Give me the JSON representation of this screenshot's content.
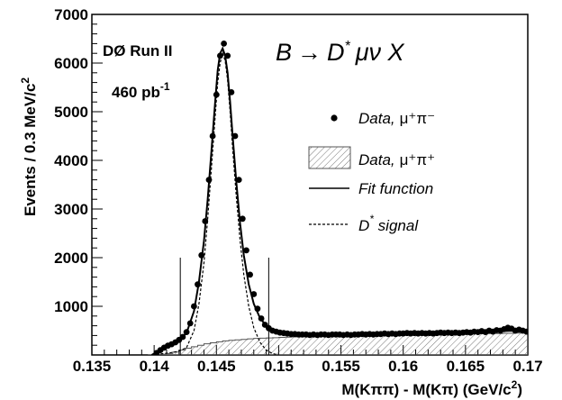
{
  "chart_data": {
    "type": "scatter",
    "xlabel": "M(Kππ) - M(Kπ) (GeV/c",
    "xlabel_sup": "2",
    "xlabel_end": ")",
    "ylabel": "Events / 0.3  MeV/c",
    "ylabel_sup": "2",
    "xlim": [
      0.135,
      0.17
    ],
    "ylim": [
      0,
      7000
    ],
    "xticks": [
      "0.135",
      "0.14",
      "0.145",
      "0.15",
      "0.155",
      "0.16",
      "0.165",
      "0.17"
    ],
    "xtick_values": [
      0.135,
      0.14,
      0.145,
      0.15,
      0.155,
      0.16,
      0.165,
      0.17
    ],
    "yticks": [
      "1000",
      "2000",
      "3000",
      "4000",
      "5000",
      "6000",
      "7000"
    ],
    "ytick_values": [
      1000,
      2000,
      3000,
      4000,
      5000,
      6000,
      7000
    ],
    "annotations": {
      "experiment": "DØ  Run II",
      "lumi": "460 pb",
      "lumi_sup": "-1",
      "process_b": "B",
      "process_arrow": "→",
      "process_d": "D",
      "process_star": "*",
      "process_rest": "μν X"
    },
    "legend": [
      {
        "name": "Data,",
        "particles": "μ⁺π⁻",
        "style": "marker"
      },
      {
        "name": "Data,",
        "particles": "μ⁺π⁺",
        "style": "hatched"
      },
      {
        "name": "Fit function",
        "style": "solid"
      },
      {
        "name": "D",
        "name_sup": "*",
        "name_rest": " signal",
        "style": "dashed"
      }
    ],
    "window_lines": [
      0.1421,
      0.1492
    ],
    "window_height": 2000,
    "series": [
      {
        "name": "Data, μ⁺π⁻",
        "x": [
          0.1402,
          0.1405,
          0.1408,
          0.1411,
          0.1414,
          0.1417,
          0.142,
          0.1423,
          0.1426,
          0.1429,
          0.1432,
          0.1435,
          0.1438,
          0.1441,
          0.1444,
          0.1447,
          0.145,
          0.1453,
          0.1456,
          0.1459,
          0.1462,
          0.1465,
          0.1468,
          0.1471,
          0.1474,
          0.1477,
          0.148,
          0.1483,
          0.1486,
          0.1489,
          0.1492,
          0.1495,
          0.1498,
          0.1501,
          0.1504,
          0.1507,
          0.151,
          0.1513,
          0.1516,
          0.1519,
          0.1522,
          0.1525,
          0.1528,
          0.1531,
          0.1534,
          0.1537,
          0.154,
          0.1543,
          0.1546,
          0.1549,
          0.1552,
          0.1555,
          0.1558,
          0.1561,
          0.1564,
          0.1567,
          0.157,
          0.1573,
          0.1576,
          0.1579,
          0.1582,
          0.1585,
          0.1588,
          0.1591,
          0.1594,
          0.1597,
          0.16,
          0.1603,
          0.1606,
          0.1609,
          0.1612,
          0.1615,
          0.1618,
          0.1621,
          0.1624,
          0.1627,
          0.163,
          0.1633,
          0.1636,
          0.1639,
          0.1642,
          0.1645,
          0.1648,
          0.1651,
          0.1654,
          0.1657,
          0.166,
          0.1663,
          0.1666,
          0.1669,
          0.1672,
          0.1675,
          0.1678,
          0.1681,
          0.1684,
          0.1687,
          0.169,
          0.1693,
          0.1696,
          0.1699
        ],
        "y": [
          40,
          100,
          150,
          190,
          220,
          260,
          310,
          370,
          470,
          650,
          1000,
          1450,
          2050,
          2750,
          3600,
          4500,
          5350,
          6150,
          6400,
          6150,
          5400,
          4500,
          3600,
          2800,
          2150,
          1650,
          1250,
          950,
          750,
          620,
          550,
          500,
          480,
          460,
          450,
          440,
          430,
          430,
          420,
          420,
          420,
          410,
          420,
          410,
          420,
          420,
          410,
          420,
          420,
          420,
          410,
          420,
          410,
          420,
          420,
          430,
          420,
          430,
          420,
          430,
          430,
          440,
          430,
          440,
          430,
          440,
          440,
          450,
          440,
          450,
          440,
          450,
          440,
          450,
          440,
          450,
          460,
          450,
          460,
          450,
          460,
          450,
          460,
          470,
          460,
          480,
          470,
          490,
          470,
          500,
          480,
          510,
          500,
          530,
          560,
          540,
          500,
          520,
          500,
          480
        ]
      },
      {
        "name": "Data, μ⁺π⁺",
        "x": [
          0.1395,
          0.14,
          0.1405,
          0.141,
          0.1415,
          0.142,
          0.1425,
          0.143,
          0.1435,
          0.144,
          0.1445,
          0.145,
          0.1455,
          0.146,
          0.1465,
          0.147,
          0.1475,
          0.148,
          0.1485,
          0.149,
          0.1495,
          0.15,
          0.1505,
          0.151,
          0.1515,
          0.152,
          0.1525,
          0.153,
          0.1535,
          0.154,
          0.1545,
          0.155,
          0.1555,
          0.156,
          0.1565,
          0.157,
          0.1575,
          0.158,
          0.1585,
          0.159,
          0.1595,
          0.16,
          0.1605,
          0.161,
          0.1615,
          0.162,
          0.1625,
          0.163,
          0.1635,
          0.164,
          0.1645,
          0.165,
          0.1655,
          0.166,
          0.1665,
          0.167,
          0.1675,
          0.168,
          0.1685,
          0.169,
          0.1695,
          0.17
        ],
        "y": [
          0,
          5,
          15,
          30,
          60,
          100,
          140,
          170,
          200,
          230,
          250,
          270,
          290,
          300,
          310,
          320,
          330,
          340,
          345,
          350,
          355,
          360,
          365,
          370,
          370,
          375,
          380,
          380,
          385,
          385,
          390,
          390,
          395,
          395,
          400,
          400,
          400,
          405,
          405,
          410,
          410,
          410,
          415,
          415,
          420,
          420,
          420,
          425,
          425,
          430,
          430,
          430,
          435,
          435,
          440,
          440,
          440,
          445,
          445,
          450,
          450,
          450
        ]
      },
      {
        "name": "Fit function",
        "x": [
          0.1398,
          0.1405,
          0.1412,
          0.1419,
          0.1426,
          0.1432,
          0.1436,
          0.144,
          0.1443,
          0.1446,
          0.1449,
          0.1451,
          0.1453,
          0.1455,
          0.1457,
          0.1459,
          0.1461,
          0.1463,
          0.1466,
          0.1469,
          0.1472,
          0.1476,
          0.148,
          0.1485,
          0.149,
          0.1495,
          0.15,
          0.1505,
          0.151,
          0.152,
          0.153,
          0.154,
          0.155,
          0.156,
          0.157,
          0.158,
          0.159,
          0.16,
          0.161,
          0.162,
          0.163,
          0.164,
          0.165,
          0.166,
          0.167,
          0.168,
          0.169,
          0.17
        ],
        "y": [
          0,
          100,
          180,
          280,
          450,
          900,
          1500,
          2350,
          3200,
          4200,
          5200,
          5850,
          6200,
          6300,
          6150,
          5800,
          5200,
          4500,
          3550,
          2700,
          2050,
          1450,
          1050,
          760,
          600,
          530,
          490,
          470,
          455,
          440,
          430,
          425,
          420,
          420,
          420,
          425,
          430,
          435,
          440,
          445,
          450,
          455,
          460,
          470,
          480,
          490,
          500,
          505
        ]
      },
      {
        "name": "D* signal",
        "x": [
          0.1398,
          0.1405,
          0.1412,
          0.1419,
          0.1426,
          0.1432,
          0.1436,
          0.144,
          0.1443,
          0.1446,
          0.1449,
          0.1451,
          0.1453,
          0.1455,
          0.1457,
          0.1459,
          0.1461,
          0.1463,
          0.1466,
          0.1469,
          0.1472,
          0.1476,
          0.148,
          0.1485,
          0.149,
          0.1495,
          0.15
        ],
        "y": [
          0,
          20,
          40,
          70,
          150,
          500,
          1050,
          1900,
          2800,
          3850,
          4900,
          5600,
          6000,
          6200,
          6050,
          5650,
          5000,
          4250,
          3250,
          2350,
          1650,
          1000,
          560,
          260,
          100,
          30,
          0
        ]
      }
    ]
  }
}
